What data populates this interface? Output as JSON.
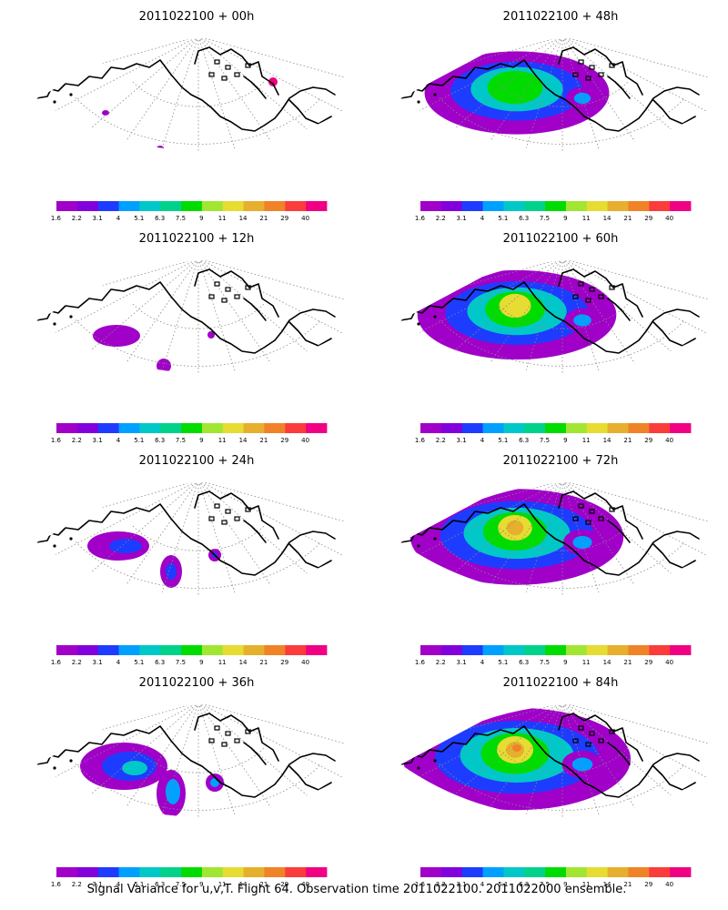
{
  "panels": [
    {
      "title": "2011022100 + 00h",
      "lead": "00h"
    },
    {
      "title": "2011022100 + 48h",
      "lead": "48h"
    },
    {
      "title": "2011022100 + 12h",
      "lead": "12h"
    },
    {
      "title": "2011022100 + 60h",
      "lead": "60h"
    },
    {
      "title": "2011022100 + 24h",
      "lead": "24h"
    },
    {
      "title": "2011022100 + 72h",
      "lead": "72h"
    },
    {
      "title": "2011022100 + 36h",
      "lead": "36h"
    },
    {
      "title": "2011022100 + 84h",
      "lead": "84h"
    }
  ],
  "colorbar": {
    "labels": [
      "1.6",
      "2.2",
      "3.1",
      "4",
      "5.1",
      "6.3",
      "7.5",
      "9",
      "11",
      "14",
      "21",
      "29",
      "40"
    ],
    "colors": [
      "#a000c8",
      "#8200dc",
      "#1e3cff",
      "#00a0ff",
      "#00c8c8",
      "#00d28c",
      "#00dc00",
      "#a0e632",
      "#e6dc32",
      "#e6af2d",
      "#f08228",
      "#fa3c3c",
      "#f00082"
    ]
  },
  "caption": "Signal Variance for u,v,T. Flight 64. Observation time 2011022100. 2011022000 ensemble."
}
